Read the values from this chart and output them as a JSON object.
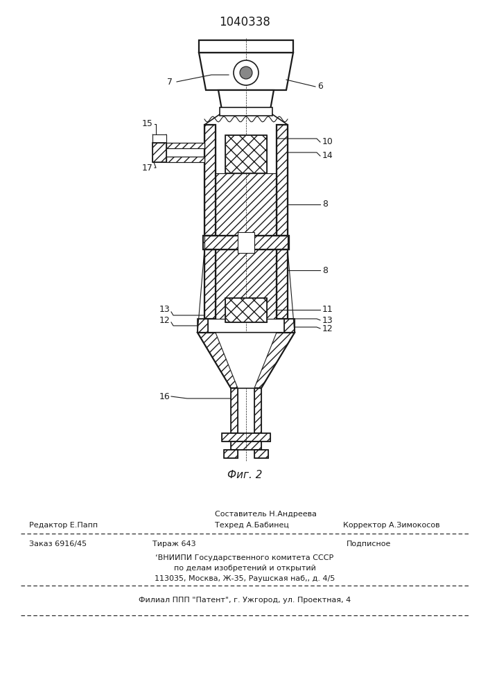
{
  "title": "1040338",
  "fig_label": "Фиг. 2",
  "bg_color": "#ffffff",
  "line_color": "#1a1a1a",
  "footer": {
    "s1": "Составитель Н.Андреева",
    "s2l": "Редактор Е.Папп",
    "s2m": "Техред А.Бабинец",
    "s2r": "Корректор А.Зимокосов",
    "s3l": "Заказ 6916/45",
    "s3m": "Тираж 643",
    "s3r": "Подписное",
    "s4": "‘ВНИИПИ Государственного комитета СССР",
    "s5": "по делам изобретений и открытий",
    "s6": "113035, Москва, Ж-35, Раушская наб,, д. 4/5",
    "s7": "Филиал ППП \"Патент\", г. Ужгород, ул. Проектная, 4"
  }
}
